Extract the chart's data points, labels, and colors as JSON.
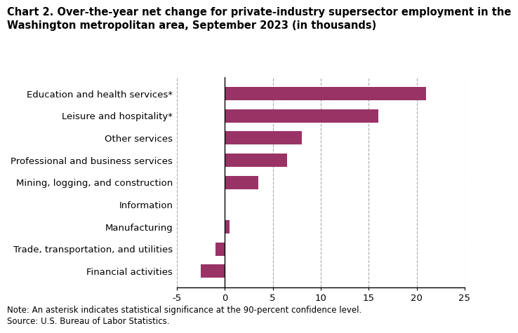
{
  "title_line1": "Chart 2. Over-the-year net change for private-industry supersector employment in the",
  "title_line2": "Washington metropolitan area, September 2023 (in thousands)",
  "categories": [
    "Financial activities",
    "Trade, transportation, and utilities",
    "Manufacturing",
    "Information",
    "Mining, logging, and construction",
    "Professional and business services",
    "Other services",
    "Leisure and hospitality*",
    "Education and health services*"
  ],
  "values": [
    -2.5,
    -1.0,
    0.5,
    0.0,
    3.5,
    6.5,
    8.0,
    16.0,
    21.0
  ],
  "bar_color": "#993366",
  "xlim": [
    -5,
    25
  ],
  "xticks": [
    -5,
    0,
    5,
    10,
    15,
    20,
    25
  ],
  "note": "Note: An asterisk indicates statistical significance at the 90-percent confidence level.",
  "source": "Source: U.S. Bureau of Labor Statistics.",
  "title_fontsize": 10.5,
  "axis_fontsize": 9.5,
  "note_fontsize": 8.5,
  "background_color": "#ffffff"
}
